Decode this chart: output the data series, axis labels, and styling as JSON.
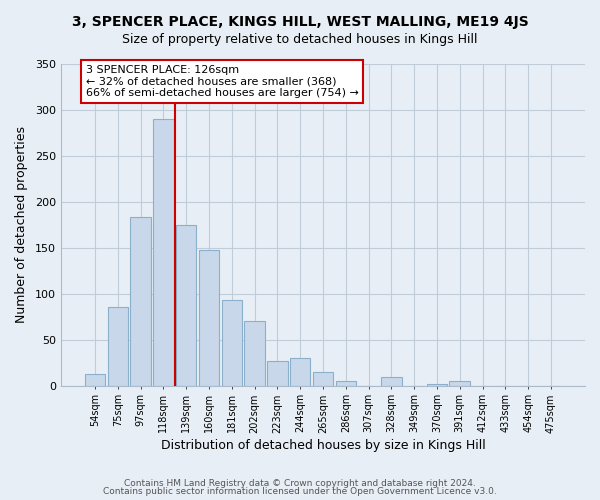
{
  "title": "3, SPENCER PLACE, KINGS HILL, WEST MALLING, ME19 4JS",
  "subtitle": "Size of property relative to detached houses in Kings Hill",
  "xlabel": "Distribution of detached houses by size in Kings Hill",
  "ylabel": "Number of detached properties",
  "bar_labels": [
    "54sqm",
    "75sqm",
    "97sqm",
    "118sqm",
    "139sqm",
    "160sqm",
    "181sqm",
    "202sqm",
    "223sqm",
    "244sqm",
    "265sqm",
    "286sqm",
    "307sqm",
    "328sqm",
    "349sqm",
    "370sqm",
    "391sqm",
    "412sqm",
    "433sqm",
    "454sqm",
    "475sqm"
  ],
  "bar_values": [
    13,
    85,
    183,
    290,
    175,
    147,
    93,
    70,
    27,
    30,
    15,
    5,
    0,
    9,
    0,
    2,
    5,
    0,
    0,
    0,
    0
  ],
  "bar_color": "#c8d8ea",
  "bar_edge_color": "#8ab0cc",
  "vline_x_index": 3.5,
  "vline_color": "#cc0000",
  "annotation_text": "3 SPENCER PLACE: 126sqm\n← 32% of detached houses are smaller (368)\n66% of semi-detached houses are larger (754) →",
  "annotation_box_color": "#ffffff",
  "annotation_box_edge": "#cc0000",
  "ylim": [
    0,
    350
  ],
  "yticks": [
    0,
    50,
    100,
    150,
    200,
    250,
    300,
    350
  ],
  "footer1": "Contains HM Land Registry data © Crown copyright and database right 2024.",
  "footer2": "Contains public sector information licensed under the Open Government Licence v3.0.",
  "bg_color": "#e8eef5",
  "plot_bg_color": "#e8eef5",
  "grid_color": "#c0ccd8",
  "title_fontsize": 10,
  "subtitle_fontsize": 9
}
